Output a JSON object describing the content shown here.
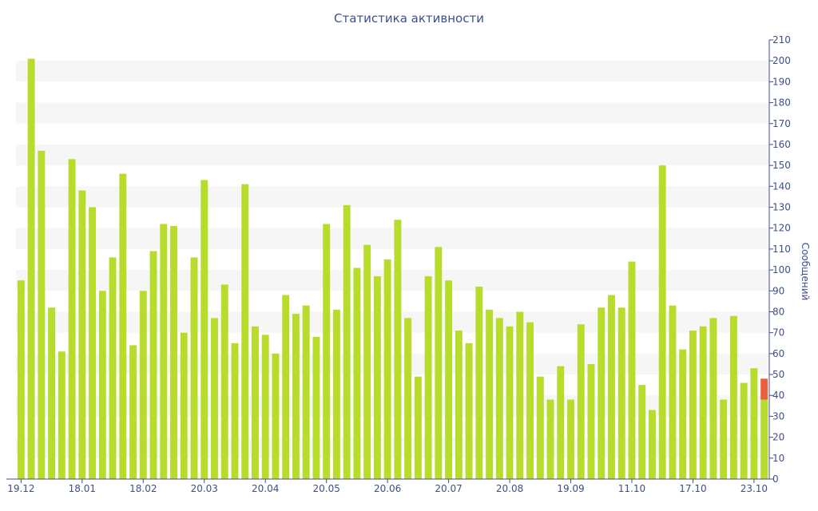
{
  "chart_data": {
    "type": "bar",
    "title": "Статистика активности",
    "xlabel": "",
    "ylabel": "Сообщений",
    "ylim": [
      0,
      210
    ],
    "yticks": [
      0,
      10,
      20,
      30,
      40,
      50,
      60,
      70,
      80,
      90,
      100,
      110,
      120,
      130,
      140,
      150,
      160,
      170,
      180,
      190,
      200,
      210
    ],
    "y_axis_position": "right",
    "grid": "alternating horizontal bands",
    "x_tick_labels": [
      {
        "label": "19.12",
        "index": 0
      },
      {
        "label": "18.01",
        "index": 6
      },
      {
        "label": "18.02",
        "index": 12
      },
      {
        "label": "20.03",
        "index": 18
      },
      {
        "label": "20.04",
        "index": 24
      },
      {
        "label": "20.05",
        "index": 30
      },
      {
        "label": "20.06",
        "index": 36
      },
      {
        "label": "20.07",
        "index": 42
      },
      {
        "label": "20.08",
        "index": 48
      },
      {
        "label": "19.09",
        "index": 54
      },
      {
        "label": "11.10",
        "index": 60
      },
      {
        "label": "17.10",
        "index": 66
      },
      {
        "label": "23.10",
        "index": 72
      }
    ],
    "series": [
      {
        "color": "#b8dc2c",
        "values": [
          95,
          201,
          157,
          82,
          61,
          153,
          138,
          130,
          90,
          106,
          146,
          64,
          90,
          109,
          122,
          121,
          70,
          106,
          143,
          77,
          93,
          65,
          141,
          73,
          69,
          60,
          88,
          79,
          83,
          68,
          122,
          81,
          131,
          101,
          112,
          97,
          105,
          124,
          77,
          49,
          97,
          111,
          95,
          71,
          65,
          92,
          81,
          77,
          73,
          80,
          75,
          49,
          38,
          54,
          38,
          74,
          55,
          82,
          88,
          82,
          104,
          45,
          33,
          150,
          83,
          62,
          71,
          73,
          77,
          38,
          78,
          46,
          53,
          38
        ]
      },
      {
        "color": "#e8603c",
        "values": [
          0,
          0,
          0,
          0,
          0,
          0,
          0,
          0,
          0,
          0,
          0,
          0,
          0,
          0,
          0,
          0,
          0,
          0,
          0,
          0,
          0,
          0,
          0,
          0,
          0,
          0,
          0,
          0,
          0,
          0,
          0,
          0,
          0,
          0,
          0,
          0,
          0,
          0,
          0,
          0,
          0,
          0,
          0,
          0,
          0,
          0,
          0,
          0,
          0,
          0,
          0,
          0,
          0,
          0,
          0,
          0,
          0,
          0,
          0,
          0,
          0,
          0,
          0,
          0,
          0,
          0,
          0,
          0,
          0,
          0,
          0,
          0,
          0,
          10
        ]
      }
    ]
  },
  "colors": {
    "bar": "#b8dc2c",
    "bar_current": "#e8603c",
    "axis": "#3d4f8b",
    "band": "#f6f6f6"
  }
}
